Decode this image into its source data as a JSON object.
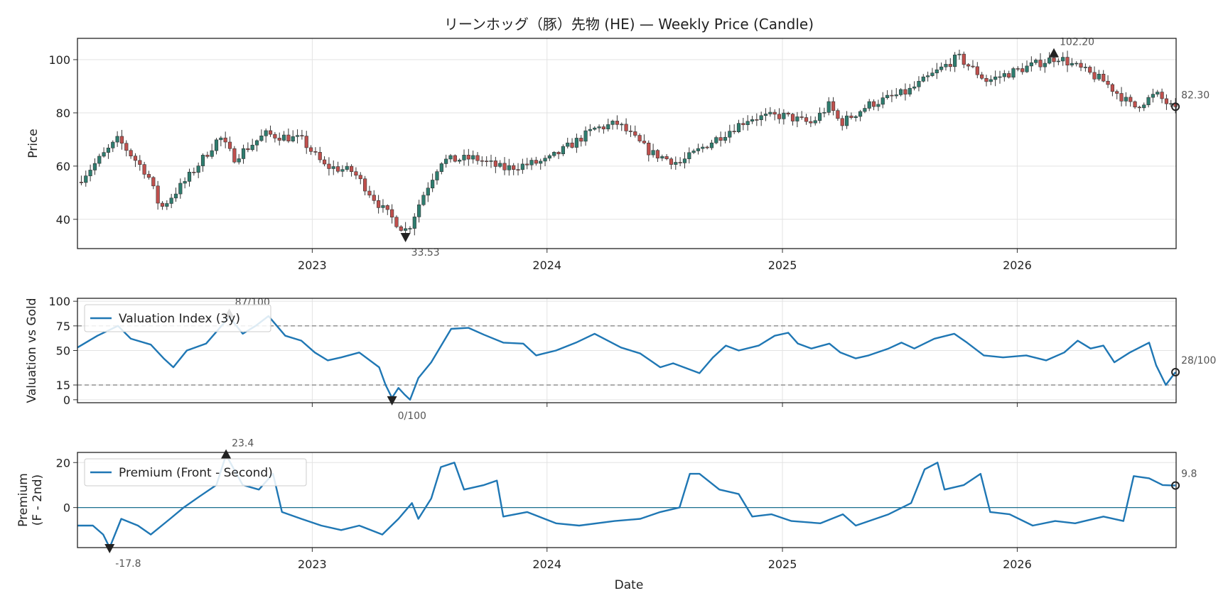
{
  "chart_data": [
    {
      "type": "candlestick",
      "title": "リーンホッグ（豚）先物 (HE) — Weekly Price (Candle)",
      "ylabel": "Price",
      "ylim": [
        29,
        108
      ],
      "yticks": [
        "40",
        "60",
        "80",
        "100"
      ],
      "xticks": [
        "2023",
        "2024",
        "2025",
        "2026"
      ],
      "x_range": [
        "2022-01-01",
        "2026-09-05"
      ],
      "anchors": [
        [
          "2022-01-01",
          54
        ],
        [
          "2022-03-05",
          70
        ],
        [
          "2022-04-20",
          57
        ],
        [
          "2022-05-10",
          44
        ],
        [
          "2022-06-20",
          55
        ],
        [
          "2022-08-10",
          71
        ],
        [
          "2022-09-01",
          63
        ],
        [
          "2022-10-20",
          72
        ],
        [
          "2022-12-15",
          70
        ],
        [
          "2023-01-20",
          60
        ],
        [
          "2023-03-05",
          58
        ],
        [
          "2023-04-20",
          44
        ],
        [
          "2023-05-28",
          35
        ],
        [
          "2023-06-20",
          48
        ],
        [
          "2023-07-20",
          62
        ],
        [
          "2023-09-10",
          63
        ],
        [
          "2023-10-25",
          59
        ],
        [
          "2024-01-01",
          62
        ],
        [
          "2024-03-15",
          74
        ],
        [
          "2024-04-20",
          76
        ],
        [
          "2024-06-10",
          65
        ],
        [
          "2024-07-25",
          61
        ],
        [
          "2024-09-05",
          68
        ],
        [
          "2024-11-10",
          78
        ],
        [
          "2025-01-01",
          79
        ],
        [
          "2025-02-15",
          76
        ],
        [
          "2025-03-15",
          83
        ],
        [
          "2025-04-01",
          76
        ],
        [
          "2025-05-15",
          83
        ],
        [
          "2025-07-15",
          88
        ],
        [
          "2025-10-01",
          101
        ],
        [
          "2025-11-15",
          92
        ],
        [
          "2026-01-01",
          96
        ],
        [
          "2026-03-05",
          101
        ],
        [
          "2026-05-15",
          92
        ],
        [
          "2026-07-01",
          82
        ],
        [
          "2026-08-05",
          87
        ],
        [
          "2026-09-01",
          81.5
        ]
      ],
      "extremes": [
        {
          "date": "2023-05-26",
          "value": 33.53,
          "label": "33.53",
          "kind": "min"
        },
        {
          "date": "2026-02-27",
          "value": 102.2,
          "label": "102.20",
          "kind": "max"
        }
      ],
      "last": {
        "date": "2026-09-04",
        "value": 82.3,
        "label": "82.30"
      },
      "up_color": "#2e7d6f",
      "down_color": "#c0504d",
      "grid": true
    },
    {
      "type": "line",
      "ylabel": "Valuation vs Gold",
      "ylim": [
        -3,
        103
      ],
      "yticks": [
        "0",
        "15",
        "50",
        "75",
        "100"
      ],
      "hlines": [
        15,
        75
      ],
      "legend": "top-left",
      "series": [
        {
          "name": "Valuation Index (3y)",
          "color": "#1f77b4",
          "points": [
            [
              "2022-01-01",
              53
            ],
            [
              "2022-02-01",
              65
            ],
            [
              "2022-03-05",
              75
            ],
            [
              "2022-03-25",
              62
            ],
            [
              "2022-04-25",
              56
            ],
            [
              "2022-05-15",
              42
            ],
            [
              "2022-05-30",
              33
            ],
            [
              "2022-06-20",
              50
            ],
            [
              "2022-07-20",
              57
            ],
            [
              "2022-08-25",
              84
            ],
            [
              "2022-09-15",
              67
            ],
            [
              "2022-10-05",
              75
            ],
            [
              "2022-10-25",
              85
            ],
            [
              "2022-11-20",
              65
            ],
            [
              "2022-12-15",
              60
            ],
            [
              "2023-01-05",
              48
            ],
            [
              "2023-01-25",
              40
            ],
            [
              "2023-02-15",
              43
            ],
            [
              "2023-03-15",
              48
            ],
            [
              "2023-04-15",
              33
            ],
            [
              "2023-04-25",
              15
            ],
            [
              "2023-05-05",
              2
            ],
            [
              "2023-05-15",
              12
            ],
            [
              "2023-05-25",
              5
            ],
            [
              "2023-06-02",
              0
            ],
            [
              "2023-06-15",
              22
            ],
            [
              "2023-07-05",
              38
            ],
            [
              "2023-08-05",
              72
            ],
            [
              "2023-09-01",
              73
            ],
            [
              "2023-09-25",
              66
            ],
            [
              "2023-10-25",
              58
            ],
            [
              "2023-11-25",
              57
            ],
            [
              "2023-12-15",
              45
            ],
            [
              "2024-01-15",
              50
            ],
            [
              "2024-02-15",
              58
            ],
            [
              "2024-03-15",
              67
            ],
            [
              "2024-04-25",
              53
            ],
            [
              "2024-05-25",
              47
            ],
            [
              "2024-06-25",
              33
            ],
            [
              "2024-07-15",
              37
            ],
            [
              "2024-08-25",
              27
            ],
            [
              "2024-09-15",
              43
            ],
            [
              "2024-10-05",
              55
            ],
            [
              "2024-10-25",
              50
            ],
            [
              "2024-11-25",
              55
            ],
            [
              "2024-12-20",
              65
            ],
            [
              "2025-01-10",
              68
            ],
            [
              "2025-01-25",
              57
            ],
            [
              "2025-02-15",
              52
            ],
            [
              "2025-03-15",
              57
            ],
            [
              "2025-04-01",
              48
            ],
            [
              "2025-04-25",
              42
            ],
            [
              "2025-05-15",
              45
            ],
            [
              "2025-06-15",
              52
            ],
            [
              "2025-07-05",
              58
            ],
            [
              "2025-07-25",
              52
            ],
            [
              "2025-08-25",
              62
            ],
            [
              "2025-09-25",
              67
            ],
            [
              "2025-10-15",
              58
            ],
            [
              "2025-11-10",
              45
            ],
            [
              "2025-12-10",
              43
            ],
            [
              "2026-01-15",
              45
            ],
            [
              "2026-02-15",
              40
            ],
            [
              "2026-03-15",
              48
            ],
            [
              "2026-04-05",
              60
            ],
            [
              "2026-04-25",
              52
            ],
            [
              "2026-05-15",
              55
            ],
            [
              "2026-06-01",
              38
            ],
            [
              "2026-06-25",
              48
            ],
            [
              "2026-07-25",
              58
            ],
            [
              "2026-08-05",
              35
            ],
            [
              "2026-08-20",
              15
            ],
            [
              "2026-09-04",
              28
            ]
          ]
        }
      ],
      "extremes": [
        {
          "date": "2022-08-25",
          "value": 87,
          "label": "87/100",
          "kind": "max"
        },
        {
          "date": "2023-05-05",
          "value": 0,
          "label": "0/100",
          "kind": "min"
        }
      ],
      "last": {
        "date": "2026-09-04",
        "value": 28,
        "label": "28/100"
      },
      "grid": true
    },
    {
      "type": "line",
      "ylabel": [
        "Premium",
        "(F - 2nd)"
      ],
      "xlabel": "Date",
      "ylim": [
        -17.8,
        24.5
      ],
      "yticks": [
        "0",
        "20"
      ],
      "xticks": [
        "2023",
        "2024",
        "2025",
        "2026"
      ],
      "hlines": [
        0
      ],
      "legend": "top-left",
      "series": [
        {
          "name": "Premium (Front - Second)",
          "color": "#1f77b4",
          "points": [
            [
              "2022-01-01",
              -8
            ],
            [
              "2022-01-25",
              -8
            ],
            [
              "2022-02-10",
              -12
            ],
            [
              "2022-02-20",
              -17.8
            ],
            [
              "2022-03-10",
              -5
            ],
            [
              "2022-04-05",
              -8
            ],
            [
              "2022-04-25",
              -12
            ],
            [
              "2022-05-25",
              -5
            ],
            [
              "2022-06-15",
              0
            ],
            [
              "2022-07-10",
              5
            ],
            [
              "2022-08-05",
              10
            ],
            [
              "2022-08-20",
              23.4
            ],
            [
              "2022-09-15",
              10
            ],
            [
              "2022-10-10",
              8
            ],
            [
              "2022-11-01",
              15
            ],
            [
              "2022-11-15",
              -2
            ],
            [
              "2022-12-15",
              -5
            ],
            [
              "2023-01-15",
              -8
            ],
            [
              "2023-02-15",
              -10
            ],
            [
              "2023-03-15",
              -8
            ],
            [
              "2023-04-20",
              -12
            ],
            [
              "2023-05-15",
              -5
            ],
            [
              "2023-06-05",
              2
            ],
            [
              "2023-06-15",
              -5
            ],
            [
              "2023-07-05",
              4
            ],
            [
              "2023-07-20",
              18
            ],
            [
              "2023-08-10",
              20
            ],
            [
              "2023-08-25",
              8
            ],
            [
              "2023-09-25",
              10
            ],
            [
              "2023-10-15",
              12
            ],
            [
              "2023-10-25",
              -4
            ],
            [
              "2023-12-01",
              -2
            ],
            [
              "2024-01-15",
              -7
            ],
            [
              "2024-02-20",
              -8
            ],
            [
              "2024-04-15",
              -6
            ],
            [
              "2024-05-25",
              -5
            ],
            [
              "2024-06-25",
              -2
            ],
            [
              "2024-07-25",
              0
            ],
            [
              "2024-08-10",
              15
            ],
            [
              "2024-08-25",
              15
            ],
            [
              "2024-09-25",
              8
            ],
            [
              "2024-10-25",
              6
            ],
            [
              "2024-11-15",
              -4
            ],
            [
              "2024-12-15",
              -3
            ],
            [
              "2025-01-15",
              -6
            ],
            [
              "2025-03-01",
              -7
            ],
            [
              "2025-04-05",
              -3
            ],
            [
              "2025-04-25",
              -8
            ],
            [
              "2025-06-15",
              -3
            ],
            [
              "2025-07-20",
              2
            ],
            [
              "2025-08-10",
              17
            ],
            [
              "2025-08-30",
              20
            ],
            [
              "2025-09-10",
              8
            ],
            [
              "2025-10-10",
              10
            ],
            [
              "2025-11-05",
              15
            ],
            [
              "2025-11-20",
              -2
            ],
            [
              "2025-12-20",
              -3
            ],
            [
              "2026-01-25",
              -8
            ],
            [
              "2026-03-01",
              -6
            ],
            [
              "2026-04-01",
              -7
            ],
            [
              "2026-05-15",
              -4
            ],
            [
              "2026-06-15",
              -6
            ],
            [
              "2026-07-01",
              14
            ],
            [
              "2026-07-25",
              13
            ],
            [
              "2026-08-15",
              10
            ],
            [
              "2026-09-04",
              9.8
            ]
          ]
        }
      ],
      "extremes": [
        {
          "date": "2022-08-20",
          "value": 23.4,
          "label": "23.4",
          "kind": "max"
        },
        {
          "date": "2022-02-20",
          "value": -17.8,
          "label": "-17.8",
          "kind": "min"
        }
      ],
      "last": {
        "date": "2026-09-04",
        "value": 9.8,
        "label": "9.8"
      },
      "grid": true
    }
  ]
}
